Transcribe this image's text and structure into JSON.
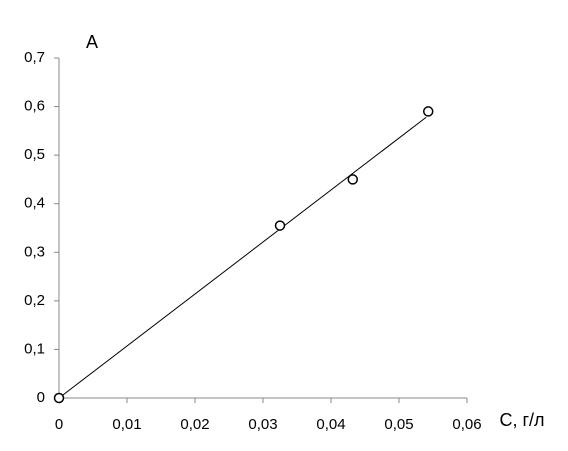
{
  "chart_data": {
    "type": "scatter",
    "x_label": "С, г/л",
    "y_label": "А",
    "x": [
      0,
      0.0325,
      0.0432,
      0.0543
    ],
    "values": [
      0,
      0.355,
      0.45,
      0.59
    ],
    "color": "#000000",
    "trendline": {
      "x": [
        0,
        0.054
      ],
      "values": [
        0,
        0.578
      ]
    },
    "xlim": [
      0,
      0.06
    ],
    "xticks": [
      0,
      {
        "value": 0.01,
        "label": "0,01"
      },
      {
        "value": 0.02,
        "label": "0,02"
      },
      {
        "value": 0.03,
        "label": "0,03"
      },
      {
        "value": 0.04,
        "label": "0,04"
      },
      {
        "value": 0.05,
        "label": "0,05"
      },
      {
        "value": 0.06,
        "label": "0,06"
      }
    ],
    "ylim": [
      0,
      0.7
    ],
    "yticks": [
      0,
      {
        "value": 0.1,
        "label": "0,1"
      },
      {
        "value": 0.2,
        "label": "0,2"
      },
      {
        "value": 0.3,
        "label": "0,3"
      },
      {
        "value": 0.4,
        "label": "0,4"
      },
      {
        "value": 0.5,
        "label": "0,5"
      },
      {
        "value": 0.6,
        "label": "0,6"
      },
      {
        "value": 0.7,
        "label": "0,7"
      }
    ],
    "grid": false
  }
}
